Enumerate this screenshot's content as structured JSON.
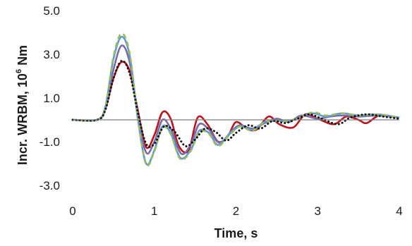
{
  "chart_data": {
    "type": "line",
    "xlabel": "Time, s",
    "ylabel": "Incr. WRBM, 10^6 Nm",
    "ylabel_parts": {
      "prefix": "Incr. WRBM, 10",
      "sup": "6",
      "suffix": " Nm"
    },
    "xlim": [
      0,
      4
    ],
    "ylim": [
      -3.0,
      5.0
    ],
    "x_ticks": [
      "0",
      "1",
      "2",
      "3",
      "4"
    ],
    "y_ticks": [
      "5.0",
      "3.0",
      "1.0",
      "-1.0",
      "-3.0"
    ],
    "grid": false,
    "legend": "none",
    "series": [
      {
        "color": "#c0121c",
        "style": "solid",
        "points": [
          [
            0,
            0
          ],
          [
            0.3,
            0
          ],
          [
            0.4,
            0.5
          ],
          [
            0.5,
            1.9
          ],
          [
            0.6,
            2.65
          ],
          [
            0.7,
            2.2
          ],
          [
            0.8,
            0.4
          ],
          [
            0.9,
            -1.25
          ],
          [
            1.0,
            -0.7
          ],
          [
            1.1,
            0.35
          ],
          [
            1.2,
            0.05
          ],
          [
            1.3,
            -1.2
          ],
          [
            1.42,
            -1.4
          ],
          [
            1.53,
            0.1
          ],
          [
            1.65,
            -0.2
          ],
          [
            1.78,
            -1.0
          ],
          [
            1.9,
            -0.75
          ],
          [
            2.0,
            -0.1
          ],
          [
            2.13,
            -0.4
          ],
          [
            2.25,
            -0.45
          ],
          [
            2.4,
            0.15
          ],
          [
            2.53,
            -0.2
          ],
          [
            2.7,
            -0.35
          ],
          [
            2.85,
            0.25
          ],
          [
            3.0,
            0.05
          ],
          [
            3.2,
            -0.2
          ],
          [
            3.35,
            0.15
          ],
          [
            3.5,
            0.0
          ],
          [
            3.6,
            -0.15
          ],
          [
            3.75,
            0.2
          ],
          [
            3.9,
            0.15
          ],
          [
            4.0,
            0.1
          ]
        ]
      },
      {
        "color": "#7b6aa8",
        "style": "solid",
        "points": [
          [
            0,
            0
          ],
          [
            0.3,
            0
          ],
          [
            0.4,
            0.5
          ],
          [
            0.5,
            2.3
          ],
          [
            0.6,
            3.4
          ],
          [
            0.7,
            2.6
          ],
          [
            0.8,
            0.2
          ],
          [
            0.9,
            -1.5
          ],
          [
            1.0,
            -1.0
          ],
          [
            1.1,
            0.0
          ],
          [
            1.2,
            -0.4
          ],
          [
            1.33,
            -1.55
          ],
          [
            1.45,
            -1.1
          ],
          [
            1.55,
            -0.2
          ],
          [
            1.67,
            -0.45
          ],
          [
            1.8,
            -1.05
          ],
          [
            1.95,
            -0.5
          ],
          [
            2.05,
            -0.25
          ],
          [
            2.2,
            -0.4
          ],
          [
            2.35,
            -0.15
          ],
          [
            2.5,
            0.05
          ],
          [
            2.65,
            -0.1
          ],
          [
            2.8,
            0.2
          ],
          [
            3.0,
            0.05
          ],
          [
            3.15,
            0.15
          ],
          [
            3.3,
            0.2
          ],
          [
            3.5,
            0.15
          ],
          [
            3.75,
            0.2
          ],
          [
            4.0,
            0.1
          ]
        ]
      },
      {
        "color": "#5b9bd5",
        "style": "solid",
        "points": [
          [
            0,
            0
          ],
          [
            0.3,
            0
          ],
          [
            0.4,
            0.6
          ],
          [
            0.5,
            2.8
          ],
          [
            0.6,
            3.8
          ],
          [
            0.7,
            2.9
          ],
          [
            0.8,
            0.0
          ],
          [
            0.9,
            -2.0
          ],
          [
            1.0,
            -1.4
          ],
          [
            1.1,
            -0.3
          ],
          [
            1.2,
            -0.6
          ],
          [
            1.32,
            -1.75
          ],
          [
            1.45,
            -1.35
          ],
          [
            1.55,
            -0.5
          ],
          [
            1.67,
            -0.6
          ],
          [
            1.78,
            -1.15
          ],
          [
            1.92,
            -0.65
          ],
          [
            2.05,
            -0.3
          ],
          [
            2.2,
            -0.45
          ],
          [
            2.35,
            -0.1
          ],
          [
            2.5,
            -0.05
          ],
          [
            2.65,
            -0.05
          ],
          [
            2.8,
            0.15
          ],
          [
            2.95,
            0.3
          ],
          [
            3.1,
            0.15
          ],
          [
            3.3,
            0.3
          ],
          [
            3.5,
            0.2
          ],
          [
            3.75,
            0.25
          ],
          [
            4.0,
            0.1
          ]
        ]
      },
      {
        "color": "#9bbb59",
        "style": "dashed",
        "points": [
          [
            0,
            0
          ],
          [
            0.3,
            0
          ],
          [
            0.4,
            0.6
          ],
          [
            0.5,
            2.9
          ],
          [
            0.6,
            3.95
          ],
          [
            0.7,
            3.0
          ],
          [
            0.8,
            0.0
          ],
          [
            0.9,
            -2.05
          ],
          [
            1.0,
            -1.45
          ],
          [
            1.1,
            -0.35
          ],
          [
            1.2,
            -0.65
          ],
          [
            1.32,
            -1.8
          ],
          [
            1.45,
            -1.4
          ],
          [
            1.55,
            -0.55
          ],
          [
            1.67,
            -0.65
          ],
          [
            1.78,
            -1.2
          ],
          [
            1.92,
            -0.7
          ],
          [
            2.05,
            -0.3
          ],
          [
            2.2,
            -0.5
          ],
          [
            2.35,
            -0.1
          ],
          [
            2.5,
            -0.05
          ],
          [
            2.65,
            -0.05
          ],
          [
            2.8,
            0.15
          ],
          [
            2.95,
            0.35
          ],
          [
            3.1,
            0.2
          ],
          [
            3.3,
            0.3
          ],
          [
            3.5,
            0.2
          ],
          [
            3.75,
            0.25
          ],
          [
            4.0,
            0.1
          ]
        ]
      },
      {
        "color": "#111111",
        "style": "dotted",
        "points": [
          [
            0,
            0
          ],
          [
            0.3,
            0
          ],
          [
            0.4,
            0.45
          ],
          [
            0.5,
            1.9
          ],
          [
            0.6,
            2.7
          ],
          [
            0.7,
            2.1
          ],
          [
            0.8,
            0.3
          ],
          [
            0.9,
            -1.1
          ],
          [
            1.0,
            -1.1
          ],
          [
            1.12,
            -0.3
          ],
          [
            1.25,
            -0.55
          ],
          [
            1.38,
            -1.2
          ],
          [
            1.5,
            -0.9
          ],
          [
            1.62,
            -0.4
          ],
          [
            1.75,
            -0.55
          ],
          [
            1.88,
            -0.95
          ],
          [
            2.0,
            -0.6
          ],
          [
            2.15,
            -0.25
          ],
          [
            2.3,
            -0.4
          ],
          [
            2.45,
            -0.05
          ],
          [
            2.6,
            -0.15
          ],
          [
            2.75,
            0.05
          ],
          [
            2.9,
            0.25
          ],
          [
            3.05,
            0.05
          ],
          [
            3.25,
            -0.2
          ],
          [
            3.4,
            0.1
          ],
          [
            3.6,
            0.25
          ],
          [
            3.8,
            0.15
          ],
          [
            4.0,
            0.05
          ]
        ]
      }
    ]
  }
}
